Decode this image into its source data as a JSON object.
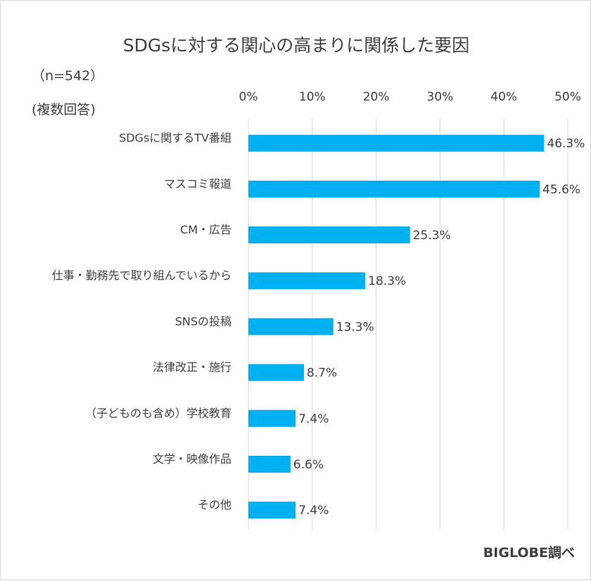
{
  "chart_data": {
    "type": "bar",
    "orientation": "horizontal",
    "title": "SDGsに対する関心の高まりに関係した要因",
    "sample_note": "（n=542）",
    "answer_note": "(複数回答)",
    "source": "BIGLOBE調べ",
    "categories": [
      "SDGsに関するTV番組",
      "マスコミ報道",
      "CM・広告",
      "仕事・勤務先で取り組んでいるから",
      "SNSの投稿",
      "法律改正・施行",
      "（子どものも含め）学校教育",
      "文学・映像作品",
      "その他"
    ],
    "values": [
      46.3,
      45.6,
      25.3,
      18.3,
      13.3,
      8.7,
      7.4,
      6.6,
      7.4
    ],
    "value_labels": [
      "46.3%",
      "45.6%",
      "25.3%",
      "18.3%",
      "13.3%",
      "8.7%",
      "7.4%",
      "6.6%",
      "7.4%"
    ],
    "xlim": [
      0,
      50
    ],
    "x_ticks": [
      0,
      10,
      20,
      30,
      40,
      50
    ],
    "x_tick_labels": [
      "0%",
      "10%",
      "20%",
      "30%",
      "40%",
      "50%"
    ],
    "x_axis_position": "top",
    "grid": true,
    "bar_color": "#00b0f0",
    "grid_color": "#d9d9d9"
  }
}
